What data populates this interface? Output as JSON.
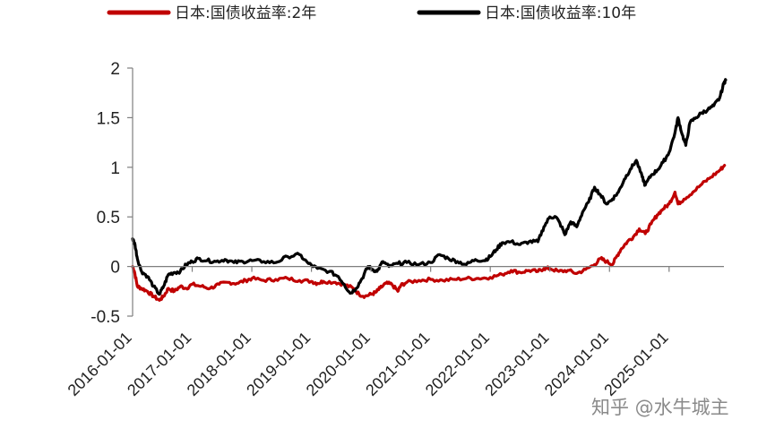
{
  "chart_data": {
    "type": "line",
    "title": "",
    "xlabel": "",
    "ylabel": "",
    "ylim": [
      -0.5,
      2
    ],
    "yticks": [
      "-0.5",
      "0",
      "0.5",
      "1",
      "1.5",
      "2"
    ],
    "xticks": [
      "2016-01-01",
      "2017-01-01",
      "2018-01-01",
      "2019-01-01",
      "2020-01-01",
      "2021-01-01",
      "2022-01-01",
      "2023-01-01",
      "2024-01-01",
      "2025-01-01"
    ],
    "xlim": [
      2016.0,
      2025.95
    ],
    "legend_position": "top",
    "grid": false,
    "series": [
      {
        "name": "日本:国债收益率:2年",
        "color": "#c00000",
        "points": [
          [
            2016.0,
            0.0
          ],
          [
            2016.03,
            -0.05
          ],
          [
            2016.08,
            -0.2
          ],
          [
            2016.15,
            -0.22
          ],
          [
            2016.25,
            -0.25
          ],
          [
            2016.35,
            -0.3
          ],
          [
            2016.45,
            -0.34
          ],
          [
            2016.52,
            -0.3
          ],
          [
            2016.6,
            -0.22
          ],
          [
            2016.7,
            -0.25
          ],
          [
            2016.8,
            -0.2
          ],
          [
            2016.9,
            -0.22
          ],
          [
            2017.0,
            -0.18
          ],
          [
            2017.15,
            -0.2
          ],
          [
            2017.3,
            -0.22
          ],
          [
            2017.45,
            -0.18
          ],
          [
            2017.6,
            -0.16
          ],
          [
            2017.75,
            -0.17
          ],
          [
            2017.9,
            -0.14
          ],
          [
            2018.0,
            -0.12
          ],
          [
            2018.2,
            -0.14
          ],
          [
            2018.4,
            -0.13
          ],
          [
            2018.6,
            -0.12
          ],
          [
            2018.8,
            -0.14
          ],
          [
            2019.0,
            -0.15
          ],
          [
            2019.1,
            -0.17
          ],
          [
            2019.2,
            -0.15
          ],
          [
            2019.4,
            -0.16
          ],
          [
            2019.55,
            -0.18
          ],
          [
            2019.7,
            -0.22
          ],
          [
            2019.8,
            -0.28
          ],
          [
            2019.9,
            -0.3
          ],
          [
            2020.0,
            -0.28
          ],
          [
            2020.08,
            -0.26
          ],
          [
            2020.15,
            -0.22
          ],
          [
            2020.25,
            -0.17
          ],
          [
            2020.35,
            -0.18
          ],
          [
            2020.45,
            -0.25
          ],
          [
            2020.5,
            -0.19
          ],
          [
            2020.6,
            -0.16
          ],
          [
            2020.8,
            -0.14
          ],
          [
            2021.0,
            -0.13
          ],
          [
            2021.2,
            -0.14
          ],
          [
            2021.4,
            -0.13
          ],
          [
            2021.6,
            -0.12
          ],
          [
            2021.8,
            -0.12
          ],
          [
            2022.0,
            -0.11
          ],
          [
            2022.2,
            -0.08
          ],
          [
            2022.35,
            -0.04
          ],
          [
            2022.5,
            -0.06
          ],
          [
            2022.65,
            -0.04
          ],
          [
            2022.8,
            -0.05
          ],
          [
            2022.9,
            -0.02
          ],
          [
            2023.0,
            -0.02
          ],
          [
            2023.15,
            -0.05
          ],
          [
            2023.3,
            -0.04
          ],
          [
            2023.45,
            -0.07
          ],
          [
            2023.6,
            -0.03
          ],
          [
            2023.75,
            0.02
          ],
          [
            2023.85,
            0.08
          ],
          [
            2023.95,
            0.05
          ],
          [
            2024.05,
            0.02
          ],
          [
            2024.12,
            0.1
          ],
          [
            2024.2,
            0.18
          ],
          [
            2024.3,
            0.25
          ],
          [
            2024.4,
            0.3
          ],
          [
            2024.5,
            0.38
          ],
          [
            2024.6,
            0.33
          ],
          [
            2024.7,
            0.43
          ],
          [
            2024.8,
            0.52
          ],
          [
            2024.9,
            0.58
          ],
          [
            2025.0,
            0.63
          ],
          [
            2025.1,
            0.75
          ],
          [
            2025.15,
            0.63
          ],
          [
            2025.25,
            0.68
          ],
          [
            2025.4,
            0.75
          ],
          [
            2025.55,
            0.83
          ],
          [
            2025.7,
            0.9
          ],
          [
            2025.85,
            0.97
          ],
          [
            2025.93,
            1.02
          ]
        ]
      },
      {
        "name": "日本:国债收益率:10年",
        "color": "#000000",
        "points": [
          [
            2016.0,
            0.28
          ],
          [
            2016.04,
            0.22
          ],
          [
            2016.08,
            0.08
          ],
          [
            2016.15,
            -0.05
          ],
          [
            2016.25,
            -0.1
          ],
          [
            2016.35,
            -0.2
          ],
          [
            2016.45,
            -0.28
          ],
          [
            2016.52,
            -0.2
          ],
          [
            2016.6,
            -0.08
          ],
          [
            2016.7,
            -0.06
          ],
          [
            2016.8,
            -0.05
          ],
          [
            2016.9,
            0.02
          ],
          [
            2017.0,
            0.05
          ],
          [
            2017.1,
            0.08
          ],
          [
            2017.25,
            0.06
          ],
          [
            2017.4,
            0.05
          ],
          [
            2017.55,
            0.07
          ],
          [
            2017.7,
            0.04
          ],
          [
            2017.85,
            0.05
          ],
          [
            2018.0,
            0.06
          ],
          [
            2018.2,
            0.05
          ],
          [
            2018.4,
            0.04
          ],
          [
            2018.6,
            0.1
          ],
          [
            2018.8,
            0.12
          ],
          [
            2018.95,
            0.03
          ],
          [
            2019.1,
            -0.02
          ],
          [
            2019.3,
            -0.05
          ],
          [
            2019.45,
            -0.1
          ],
          [
            2019.55,
            -0.18
          ],
          [
            2019.65,
            -0.27
          ],
          [
            2019.75,
            -0.22
          ],
          [
            2019.85,
            -0.12
          ],
          [
            2019.95,
            0.0
          ],
          [
            2020.0,
            -0.02
          ],
          [
            2020.1,
            -0.05
          ],
          [
            2020.2,
            0.05
          ],
          [
            2020.3,
            0.0
          ],
          [
            2020.45,
            0.03
          ],
          [
            2020.6,
            0.04
          ],
          [
            2020.8,
            0.02
          ],
          [
            2021.0,
            0.04
          ],
          [
            2021.15,
            0.12
          ],
          [
            2021.3,
            0.08
          ],
          [
            2021.45,
            0.05
          ],
          [
            2021.6,
            0.02
          ],
          [
            2021.75,
            0.07
          ],
          [
            2021.9,
            0.06
          ],
          [
            2022.0,
            0.1
          ],
          [
            2022.1,
            0.17
          ],
          [
            2022.2,
            0.24
          ],
          [
            2022.35,
            0.25
          ],
          [
            2022.5,
            0.22
          ],
          [
            2022.65,
            0.25
          ],
          [
            2022.8,
            0.25
          ],
          [
            2022.9,
            0.4
          ],
          [
            2023.0,
            0.5
          ],
          [
            2023.1,
            0.5
          ],
          [
            2023.2,
            0.4
          ],
          [
            2023.25,
            0.32
          ],
          [
            2023.35,
            0.45
          ],
          [
            2023.45,
            0.4
          ],
          [
            2023.55,
            0.55
          ],
          [
            2023.65,
            0.65
          ],
          [
            2023.75,
            0.8
          ],
          [
            2023.85,
            0.72
          ],
          [
            2023.95,
            0.63
          ],
          [
            2024.05,
            0.68
          ],
          [
            2024.15,
            0.75
          ],
          [
            2024.25,
            0.88
          ],
          [
            2024.35,
            0.98
          ],
          [
            2024.45,
            1.07
          ],
          [
            2024.55,
            0.9
          ],
          [
            2024.6,
            0.82
          ],
          [
            2024.7,
            0.92
          ],
          [
            2024.8,
            0.97
          ],
          [
            2024.9,
            1.05
          ],
          [
            2025.0,
            1.15
          ],
          [
            2025.1,
            1.35
          ],
          [
            2025.15,
            1.5
          ],
          [
            2025.22,
            1.33
          ],
          [
            2025.28,
            1.22
          ],
          [
            2025.35,
            1.45
          ],
          [
            2025.45,
            1.5
          ],
          [
            2025.55,
            1.55
          ],
          [
            2025.65,
            1.58
          ],
          [
            2025.75,
            1.62
          ],
          [
            2025.85,
            1.7
          ],
          [
            2025.92,
            1.85
          ],
          [
            2025.95,
            1.88
          ]
        ]
      }
    ]
  },
  "watermark": "知乎 @水牛城主"
}
